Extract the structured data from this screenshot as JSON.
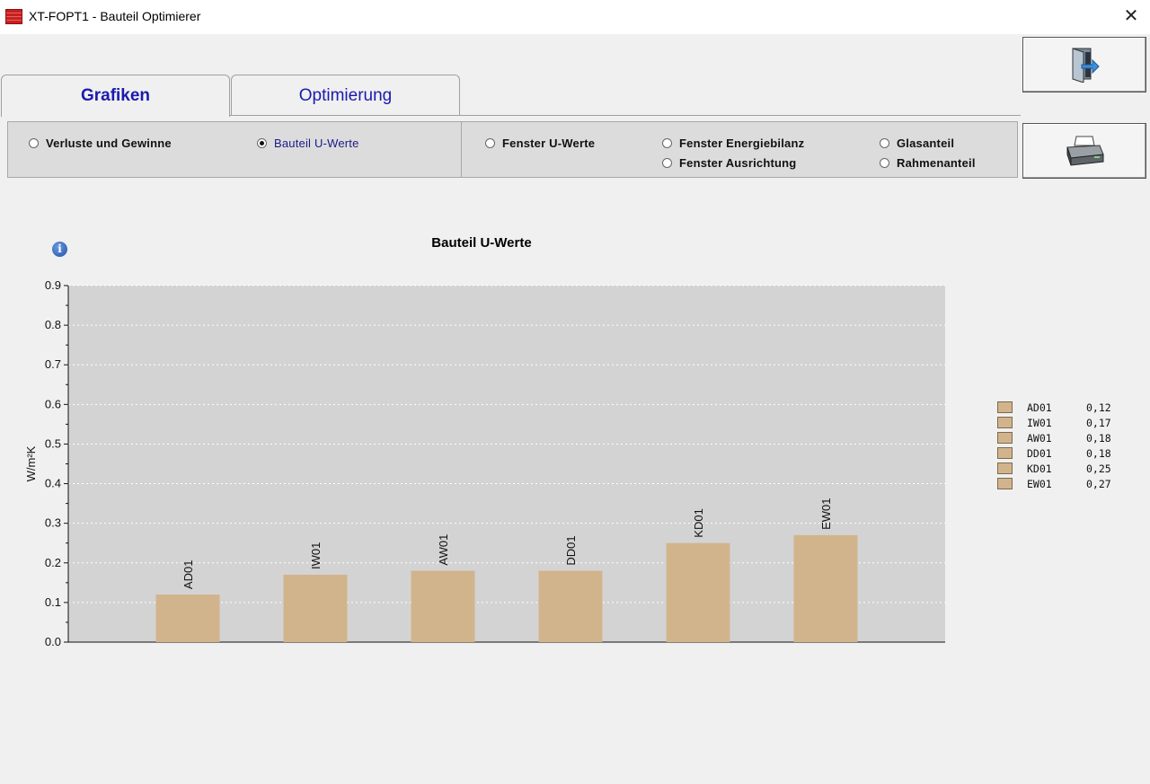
{
  "window": {
    "title": "XT-FOPT1 - Bauteil Optimierer",
    "close": "✕"
  },
  "tabs": [
    {
      "label": "Grafiken",
      "active": true
    },
    {
      "label": "Optimierung",
      "active": false
    }
  ],
  "toolbar": {
    "exit_icon": "exit-door-icon",
    "print_icon": "printer-icon"
  },
  "radio_options": [
    {
      "label": "Verluste und Gewinne",
      "selected": false
    },
    {
      "label": "Bauteil U-Werte",
      "selected": true
    },
    {
      "label": "Fenster U-Werte",
      "selected": false
    },
    {
      "label": "Fenster Energiebilanz",
      "selected": false
    },
    {
      "label": "Fenster Ausrichtung",
      "selected": false
    },
    {
      "label": "Glasanteil",
      "selected": false
    },
    {
      "label": "Rahmenanteil",
      "selected": false
    }
  ],
  "info_icon": "i",
  "colors": {
    "bar": "#d2b48c",
    "plot_bg": "#d3d3d3",
    "tab_text": "#1a1ab0"
  },
  "chart_data": {
    "type": "bar",
    "title": "Bauteil U-Werte",
    "ylabel": "W/m²K",
    "ylim": [
      0,
      0.9
    ],
    "yticks": [
      "0.0",
      "0.1",
      "0.2",
      "0.3",
      "0.4",
      "0.5",
      "0.6",
      "0.7",
      "0.8",
      "0.9"
    ],
    "grid": true,
    "legend_position": "right",
    "categories": [
      "AD01",
      "IW01",
      "AW01",
      "DD01",
      "KD01",
      "EW01"
    ],
    "values": [
      0.12,
      0.17,
      0.18,
      0.18,
      0.25,
      0.27
    ],
    "legend": [
      {
        "name": "AD01",
        "value": "0,12"
      },
      {
        "name": "IW01",
        "value": "0,17"
      },
      {
        "name": "AW01",
        "value": "0,18"
      },
      {
        "name": "DD01",
        "value": "0,18"
      },
      {
        "name": "KD01",
        "value": "0,25"
      },
      {
        "name": "EW01",
        "value": "0,27"
      }
    ]
  }
}
